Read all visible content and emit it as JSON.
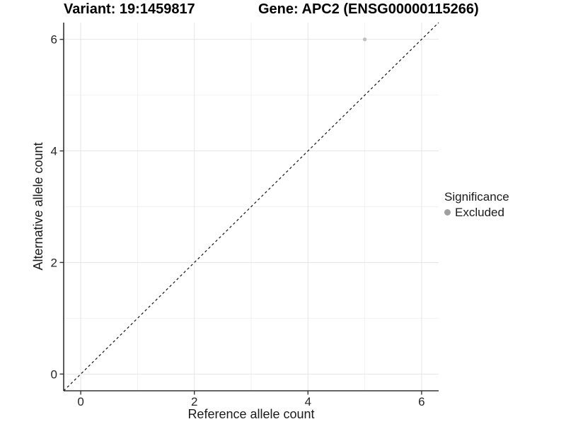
{
  "titles": {
    "variant": "Variant: 19:1459817",
    "gene": "Gene: APC2 (ENSG00000115266)"
  },
  "chart_data": {
    "type": "scatter",
    "title": "Variant: 19:1459817 / Gene: APC2 (ENSG00000115266)",
    "xlabel": "Reference allele count",
    "ylabel": "Alternative allele count",
    "xlim": [
      -0.3,
      6.3
    ],
    "ylim": [
      -0.3,
      6.3
    ],
    "x_ticks": [
      0,
      2,
      4,
      6
    ],
    "y_ticks": [
      0,
      2,
      4,
      6
    ],
    "x_minor": [
      1,
      3,
      5
    ],
    "y_minor": [
      1,
      3,
      5
    ],
    "grid": true,
    "points": [
      {
        "x": 5,
        "y": 6,
        "label": "Excluded"
      }
    ],
    "identity_line": {
      "slope": 1,
      "intercept": 0,
      "style": "dashed"
    },
    "legend": {
      "title": "Significance",
      "position": "right",
      "entries": [
        {
          "label": "Excluded",
          "color": "#9f9f9f"
        }
      ]
    }
  },
  "colors": {
    "background": "#ffffff",
    "point": "#c0c0c0",
    "legend_dot": "#9f9f9f",
    "grid_major": "#e6e6e6",
    "grid_minor": "#f2f2f2",
    "axis_line": "#333333",
    "tick_mark": "#333333",
    "dashed_line": "#111111",
    "title_text": "#000000",
    "axis_text": "#1a1a1a"
  }
}
